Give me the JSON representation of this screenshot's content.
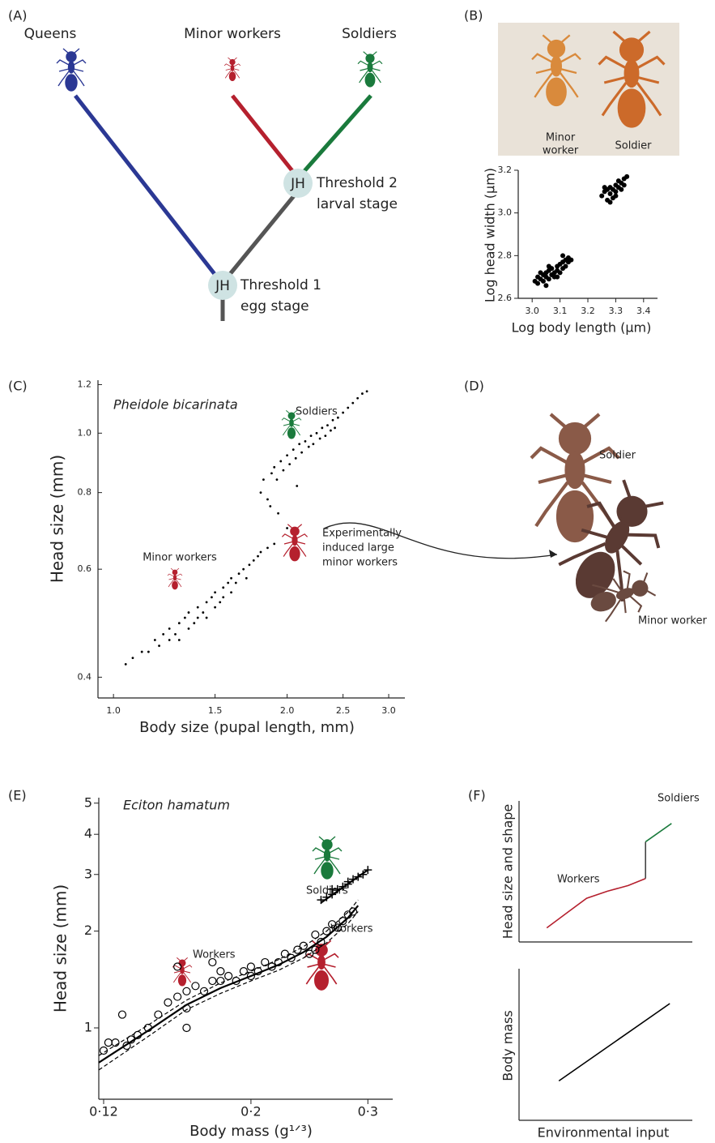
{
  "panel_labels": [
    "(A)",
    "(B)",
    "(C)",
    "(D)",
    "(E)",
    "(F)"
  ],
  "tree": {
    "tips": [
      "Queens",
      "Minor workers",
      "Soldiers"
    ],
    "nodes": [
      {
        "badge": "JH",
        "lines": [
          "Threshold 2",
          "larval stage"
        ]
      },
      {
        "badge": "JH",
        "lines": [
          "Threshold 1",
          "egg stage"
        ]
      }
    ]
  },
  "photo_b": {
    "minor_label": [
      "Minor",
      "worker"
    ],
    "soldier_label": "Soldier"
  },
  "photo_d": {
    "labels": [
      "Soldier",
      "Minor worker"
    ]
  },
  "chart_data": [
    {
      "type": "scatter",
      "x_label": "Log body length (µm)",
      "y_label": "Log head width (µm)",
      "xlim": [
        2.95,
        3.45
      ],
      "ylim": [
        2.6,
        3.2
      ],
      "xticks": [
        {
          "value": 3,
          "label": "3.0"
        },
        3.1,
        3.2,
        3.3,
        3.4
      ],
      "yticks": [
        2.6,
        2.8,
        {
          "value": 3,
          "label": "3.0"
        },
        3.2
      ],
      "series": [
        {
          "color": "#000000",
          "marker": "dot",
          "x": [
            3.01,
            3.02,
            3.02,
            3.03,
            3.04,
            3.04,
            3.05,
            3.05,
            3.06,
            3.06,
            3.07,
            3.07,
            3.08,
            3.08,
            3.09,
            3.09,
            3.1,
            3.1,
            3.11,
            3.11,
            3.12,
            3.12,
            3.13,
            3.13,
            3.14,
            3.03,
            3.06,
            3.09,
            3.11,
            3.05
          ],
          "values": [
            2.68,
            2.7,
            2.67,
            2.69,
            2.71,
            2.68,
            2.7,
            2.72,
            2.69,
            2.73,
            2.71,
            2.74,
            2.72,
            2.7,
            2.75,
            2.73,
            2.76,
            2.72,
            2.77,
            2.74,
            2.75,
            2.78,
            2.77,
            2.79,
            2.78,
            2.72,
            2.75,
            2.7,
            2.8,
            2.66
          ]
        },
        {
          "color": "#000000",
          "marker": "dot",
          "x": [
            3.25,
            3.26,
            3.27,
            3.27,
            3.28,
            3.28,
            3.29,
            3.29,
            3.3,
            3.3,
            3.31,
            3.31,
            3.32,
            3.32,
            3.33,
            3.33,
            3.34,
            3.3,
            3.28,
            3.26
          ],
          "values": [
            3.08,
            3.1,
            3.06,
            3.11,
            3.09,
            3.12,
            3.07,
            3.11,
            3.1,
            3.13,
            3.12,
            3.15,
            3.14,
            3.11,
            3.16,
            3.13,
            3.17,
            3.08,
            3.05,
            3.12
          ]
        }
      ]
    },
    {
      "type": "scatter",
      "title": "Pheidole bicarinata",
      "x_label": "Body size (pupal length, mm)",
      "y_label": "Head size (mm)",
      "xscale": "log",
      "yscale": "log",
      "xlim": [
        0.94,
        3.2
      ],
      "ylim": [
        0.37,
        1.22
      ],
      "xticks": [
        {
          "value": 1,
          "label": "1.0"
        },
        1.5,
        {
          "value": 2,
          "label": "2.0"
        },
        2.5,
        {
          "value": 3,
          "label": "3.0"
        }
      ],
      "yticks": [
        0.4,
        0.6,
        0.8,
        {
          "value": 1,
          "label": "1.0"
        },
        1.2
      ],
      "annotations": [
        "Soldiers",
        "Minor workers",
        [
          "Experimentally",
          "induced large",
          "minor workers"
        ]
      ],
      "series": [
        {
          "color": "#000000",
          "marker": "speck",
          "x": [
            1.05,
            1.08,
            1.12,
            1.15,
            1.18,
            1.2,
            1.22,
            1.25,
            1.25,
            1.28,
            1.3,
            1.3,
            1.33,
            1.35,
            1.35,
            1.38,
            1.4,
            1.4,
            1.43,
            1.45,
            1.45,
            1.48,
            1.5,
            1.5,
            1.53,
            1.55,
            1.55,
            1.58,
            1.6,
            1.6,
            1.63,
            1.65,
            1.68,
            1.7,
            1.72,
            1.75,
            1.78,
            1.8,
            1.85,
            1.9
          ],
          "values": [
            0.42,
            0.43,
            0.44,
            0.44,
            0.46,
            0.45,
            0.47,
            0.46,
            0.48,
            0.47,
            0.49,
            0.46,
            0.5,
            0.48,
            0.51,
            0.49,
            0.52,
            0.5,
            0.51,
            0.53,
            0.5,
            0.54,
            0.52,
            0.55,
            0.53,
            0.56,
            0.54,
            0.57,
            0.55,
            0.58,
            0.57,
            0.59,
            0.6,
            0.58,
            0.61,
            0.62,
            0.63,
            0.64,
            0.65,
            0.66
          ]
        },
        {
          "color": "#000000",
          "marker": "speck",
          "x": [
            1.8,
            1.82,
            1.85,
            1.88,
            1.9,
            1.92,
            1.95,
            1.97,
            2.0,
            2.02,
            2.05,
            2.07,
            2.1,
            2.12,
            2.15,
            2.18,
            2.2,
            2.22,
            2.25,
            2.28,
            2.3,
            2.33,
            2.35,
            2.38,
            2.4,
            2.42,
            2.45,
            2.5,
            2.55,
            2.6,
            2.65,
            2.7,
            2.75,
            1.87,
            1.93,
            2.0,
            2.08
          ],
          "values": [
            0.8,
            0.84,
            0.78,
            0.86,
            0.88,
            0.84,
            0.9,
            0.87,
            0.92,
            0.89,
            0.94,
            0.91,
            0.96,
            0.93,
            0.97,
            0.95,
            0.99,
            0.96,
            1.0,
            0.98,
            1.02,
            0.99,
            1.03,
            1.01,
            1.05,
            1.02,
            1.06,
            1.08,
            1.1,
            1.12,
            1.14,
            1.16,
            1.17,
            0.76,
            0.74,
            0.7,
            0.82
          ]
        }
      ]
    },
    {
      "type": "scatter",
      "title": "Eciton hamatum",
      "x_label": "Body mass (g¹ᐟ³)",
      "y_label": "Head size (mm)",
      "xscale": "log",
      "yscale": "log",
      "xlim": [
        0.118,
        0.327
      ],
      "ylim": [
        0.6,
        5.2
      ],
      "xticks": [
        {
          "value": 0.12,
          "label": "0·12"
        },
        {
          "value": 0.2,
          "label": "0·2"
        },
        {
          "value": 0.3,
          "label": "0·3"
        }
      ],
      "yticks": [
        1,
        2,
        3,
        4,
        5
      ],
      "annotations": [
        "Soldiers",
        "Workers",
        "Workers"
      ],
      "series": [
        {
          "color": "#000000",
          "marker": "circle",
          "x": [
            0.12,
            0.122,
            0.125,
            0.128,
            0.13,
            0.132,
            0.135,
            0.14,
            0.145,
            0.15,
            0.155,
            0.16,
            0.16,
            0.165,
            0.17,
            0.175,
            0.18,
            0.18,
            0.185,
            0.19,
            0.195,
            0.2,
            0.2,
            0.205,
            0.21,
            0.215,
            0.22,
            0.225,
            0.23,
            0.235,
            0.24,
            0.245,
            0.25,
            0.255,
            0.26,
            0.265,
            0.27,
            0.275,
            0.28,
            0.285,
            0.16,
            0.155,
            0.175,
            0.25
          ],
          "values": [
            0.85,
            0.9,
            0.9,
            1.1,
            0.88,
            0.92,
            0.95,
            1.0,
            1.1,
            1.2,
            1.25,
            1.3,
            1.15,
            1.35,
            1.3,
            1.4,
            1.4,
            1.5,
            1.45,
            1.4,
            1.5,
            1.55,
            1.45,
            1.5,
            1.6,
            1.55,
            1.6,
            1.7,
            1.65,
            1.75,
            1.8,
            1.7,
            1.95,
            1.85,
            2.0,
            2.1,
            2.05,
            2.15,
            2.25,
            2.3,
            1.0,
            1.55,
            1.6,
            1.75
          ]
        },
        {
          "color": "#000000",
          "marker": "plus",
          "x": [
            0.255,
            0.26,
            0.265,
            0.27,
            0.275,
            0.28,
            0.285,
            0.29,
            0.295,
            0.3,
            0.265,
            0.28
          ],
          "values": [
            2.5,
            2.55,
            2.6,
            2.7,
            2.75,
            2.85,
            2.9,
            2.95,
            3.0,
            3.1,
            2.7,
            2.8
          ]
        },
        {
          "color": "#000000",
          "marker": "line",
          "x": [
            0.118,
            0.14,
            0.16,
            0.18,
            0.2,
            0.22,
            0.24,
            0.26,
            0.28,
            0.29
          ],
          "values": [
            0.78,
            0.98,
            1.18,
            1.33,
            1.45,
            1.57,
            1.72,
            1.92,
            2.2,
            2.4
          ]
        },
        {
          "color": "#000000",
          "marker": "dash",
          "x": [
            0.118,
            0.14,
            0.16,
            0.18,
            0.2,
            0.22,
            0.24,
            0.26,
            0.28,
            0.29
          ],
          "values": [
            0.82,
            1.02,
            1.22,
            1.38,
            1.5,
            1.63,
            1.79,
            2.0,
            2.29,
            2.5
          ]
        },
        {
          "color": "#000000",
          "marker": "dash",
          "x": [
            0.118,
            0.14,
            0.16,
            0.18,
            0.2,
            0.22,
            0.24,
            0.26,
            0.28,
            0.29
          ],
          "values": [
            0.74,
            0.94,
            1.14,
            1.28,
            1.4,
            1.51,
            1.65,
            1.84,
            2.11,
            2.3
          ]
        },
        {
          "color": "#000000",
          "marker": "line",
          "x": [
            0.255,
            0.3
          ],
          "values": [
            2.45,
            3.1
          ]
        }
      ]
    },
    {
      "type": "line",
      "y_label": "Head size and shape",
      "xlim": [
        0,
        10
      ],
      "ylim": [
        0,
        10
      ],
      "annotations": [
        "Workers",
        "Soldiers"
      ],
      "series": [
        {
          "color": "#b5202e",
          "x": [
            1.6,
            2.8,
            3.9,
            5.1,
            6.3,
            7.3
          ],
          "values": [
            1.0,
            2.1,
            3.1,
            3.6,
            4.0,
            4.5
          ]
        },
        {
          "color": "#444444",
          "x": [
            7.3,
            7.3
          ],
          "values": [
            4.5,
            7.1
          ]
        },
        {
          "color": "#1a7a3c",
          "x": [
            7.3,
            8.8
          ],
          "values": [
            7.1,
            8.4
          ]
        }
      ]
    },
    {
      "type": "line",
      "y_label": "Body mass",
      "x_label": "Environmental input",
      "xlim": [
        0,
        10
      ],
      "ylim": [
        0,
        10
      ],
      "series": [
        {
          "color": "#000000",
          "x": [
            2.3,
            8.7
          ],
          "values": [
            2.6,
            7.7
          ]
        }
      ]
    }
  ]
}
